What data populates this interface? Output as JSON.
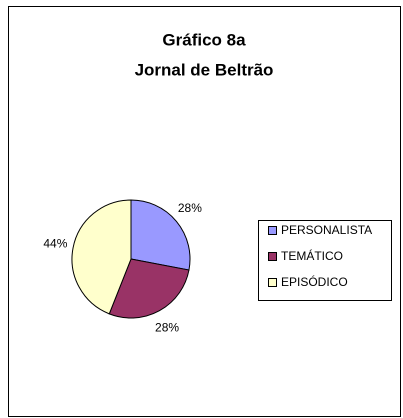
{
  "chart_data": {
    "type": "pie",
    "title": [
      "Gráfico 8a",
      "Jornal de Beltrão"
    ],
    "categories": [
      "PERSONALISTA",
      "TEMÁTICO",
      "EPISÓDICO"
    ],
    "values": [
      28,
      28,
      44
    ],
    "value_labels": [
      "28%",
      "28%",
      "44%"
    ],
    "colors": [
      "#9999ff",
      "#993366",
      "#ffffcc"
    ],
    "legend": "right"
  }
}
